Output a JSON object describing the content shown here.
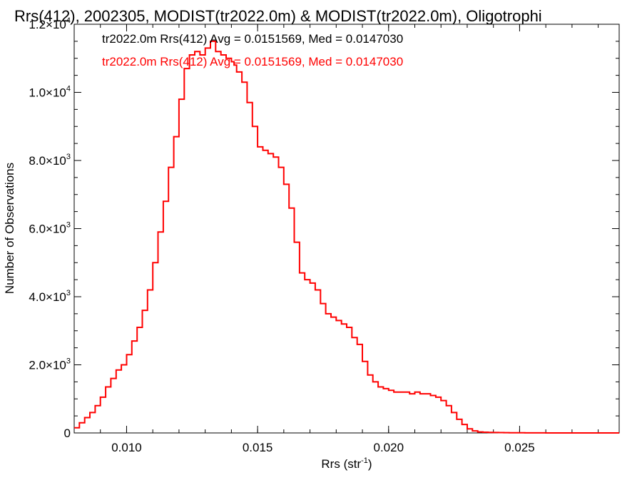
{
  "chart_data": {
    "type": "line",
    "title": "Rrs(412), 2002305, MODIST(tr2022.0m) & MODIST(tr2022.0m), Oligotrophi",
    "xlabel_main": "Rrs (str",
    "xlabel_sup": "-1",
    "xlabel_close": ")",
    "ylabel": "Number of Observations",
    "xlim": [
      0.008,
      0.0288
    ],
    "ylim": [
      0,
      12000
    ],
    "x_ticks": [
      {
        "value": 0.01,
        "label": "0.010"
      },
      {
        "value": 0.015,
        "label": "0.015"
      },
      {
        "value": 0.02,
        "label": "0.020"
      },
      {
        "value": 0.025,
        "label": "0.025"
      }
    ],
    "y_ticks": [
      {
        "value": 0,
        "mant": "0",
        "exp": ""
      },
      {
        "value": 2000,
        "mant": "2.0×10",
        "exp": "3"
      },
      {
        "value": 4000,
        "mant": "4.0×10",
        "exp": "3"
      },
      {
        "value": 6000,
        "mant": "6.0×10",
        "exp": "3"
      },
      {
        "value": 8000,
        "mant": "8.0×10",
        "exp": "3"
      },
      {
        "value": 10000,
        "mant": "1.0×10",
        "exp": "4"
      },
      {
        "value": 12000,
        "mant": "1.2×10",
        "exp": "4"
      }
    ],
    "grid": false,
    "annotations": [
      {
        "text": "tr2022.0m Rrs(412) Avg = 0.0151569, Med = 0.0147030",
        "color": "#000000"
      },
      {
        "text": "tr2022.0m Rrs(412) Avg = 0.0151569, Med = 0.0147030",
        "color": "#ff0000"
      }
    ],
    "series": [
      {
        "color": "#ff0000",
        "overlay_color": "#000000",
        "x": [
          0.008,
          0.0082,
          0.0084,
          0.0086,
          0.0088,
          0.009,
          0.0092,
          0.0094,
          0.0096,
          0.0098,
          0.01,
          0.0102,
          0.0104,
          0.0106,
          0.0108,
          0.011,
          0.0112,
          0.0114,
          0.0116,
          0.0118,
          0.012,
          0.0122,
          0.0124,
          0.0126,
          0.0128,
          0.013,
          0.0132,
          0.0134,
          0.0136,
          0.0138,
          0.014,
          0.0141,
          0.0142,
          0.0144,
          0.0146,
          0.0148,
          0.015,
          0.0152,
          0.0154,
          0.0156,
          0.0158,
          0.016,
          0.0162,
          0.0164,
          0.0166,
          0.0168,
          0.017,
          0.0172,
          0.0174,
          0.0176,
          0.0178,
          0.018,
          0.0182,
          0.0184,
          0.0186,
          0.0188,
          0.019,
          0.0192,
          0.0194,
          0.0196,
          0.0198,
          0.02,
          0.0202,
          0.0204,
          0.0206,
          0.0208,
          0.021,
          0.0212,
          0.0214,
          0.0216,
          0.0218,
          0.022,
          0.0222,
          0.0224,
          0.0226,
          0.0228,
          0.023,
          0.0232,
          0.0234,
          0.0236,
          0.0238,
          0.024,
          0.0242,
          0.0244,
          0.0246,
          0.0248,
          0.025,
          0.0252,
          0.0254,
          0.0256,
          0.026,
          0.027,
          0.0288
        ],
        "y": [
          150,
          300,
          450,
          600,
          800,
          1050,
          1350,
          1600,
          1850,
          2000,
          2300,
          2700,
          3100,
          3600,
          4200,
          5000,
          5900,
          6800,
          7800,
          8700,
          9800,
          10700,
          11100,
          11200,
          11100,
          11300,
          11500,
          11200,
          11100,
          11000,
          10900,
          10800,
          10600,
          10300,
          9700,
          9000,
          8400,
          8300,
          8200,
          8100,
          7800,
          7300,
          6600,
          5600,
          4700,
          4500,
          4400,
          4200,
          3800,
          3500,
          3400,
          3300,
          3200,
          3100,
          2800,
          2600,
          2100,
          1700,
          1500,
          1350,
          1300,
          1250,
          1200,
          1200,
          1200,
          1150,
          1200,
          1150,
          1150,
          1100,
          1050,
          950,
          800,
          600,
          400,
          250,
          120,
          60,
          30,
          20,
          15,
          12,
          10,
          8,
          6,
          5,
          4,
          3,
          2,
          2,
          1,
          1,
          0
        ]
      }
    ]
  }
}
